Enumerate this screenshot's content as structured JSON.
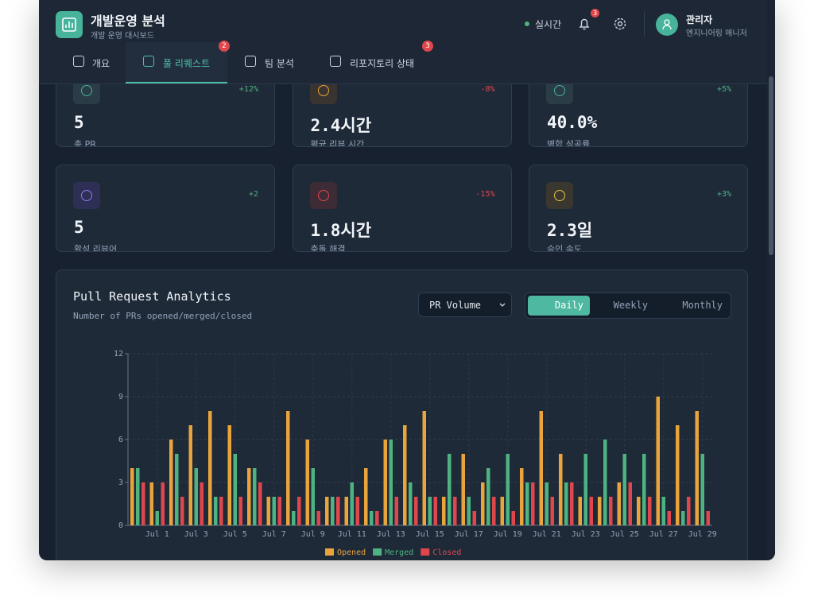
{
  "header": {
    "title": "개발운영 분석",
    "subtitle": "개발 운영 대시보드",
    "status": "실시간",
    "notifications": 3,
    "user": {
      "name": "관리자",
      "role": "엔지니어링 매니저"
    }
  },
  "tabs": [
    {
      "label": "개요"
    },
    {
      "label": "풀 리퀘스트",
      "badge": 2
    },
    {
      "label": "팀 분석"
    },
    {
      "label": "리포지토리 상태",
      "badge": 3
    }
  ],
  "stats": [
    {
      "value": "5",
      "label": "총 PR",
      "change": "+12%"
    },
    {
      "value": "2.4시간",
      "label": "평균 리뷰 시간",
      "change": "-8%"
    },
    {
      "value": "40.0%",
      "label": "병합 성공률",
      "change": "+5%"
    },
    {
      "value": "5",
      "label": "활성 리뷰어",
      "change": "+2"
    },
    {
      "value": "1.8시간",
      "label": "충돌 해결",
      "change": "-15%"
    },
    {
      "value": "2.3일",
      "label": "승인 속도",
      "change": "+3%"
    }
  ],
  "chart_data": {
    "type": "bar",
    "title": "Pull Request Analytics",
    "subtitle": "Number of PRs opened/merged/closed",
    "metric": "PR Volume",
    "periods": [
      "Daily",
      "Weekly",
      "Monthly"
    ],
    "categories": [
      null,
      "Jul 1",
      null,
      "Jul 3",
      null,
      "Jul 5",
      null,
      "Jul 7",
      null,
      "Jul 9",
      null,
      "Jul 11",
      null,
      "Jul 13",
      null,
      "Jul 15",
      null,
      "Jul 17",
      null,
      "Jul 19",
      null,
      "Jul 21",
      null,
      "Jul 23",
      null,
      "Jul 25",
      null,
      "Jul 27",
      null,
      "Jul 29"
    ],
    "series": [
      {
        "name": "Opened",
        "color": "#e9a43c",
        "values": [
          4,
          3,
          6,
          7,
          8,
          7,
          4,
          2,
          8,
          6,
          2,
          2,
          4,
          6,
          7,
          8,
          2,
          5,
          3,
          2,
          4,
          8,
          5,
          2,
          2,
          3,
          2,
          9,
          7,
          8
        ]
      },
      {
        "name": "Merged",
        "color": "#4db380",
        "values": [
          4,
          1,
          5,
          4,
          2,
          5,
          4,
          2,
          1,
          4,
          2,
          3,
          1,
          6,
          3,
          2,
          5,
          2,
          4,
          5,
          3,
          3,
          3,
          5,
          6,
          5,
          5,
          2,
          1,
          5
        ]
      },
      {
        "name": "Closed",
        "color": "#e0474c",
        "values": [
          3,
          3,
          2,
          3,
          2,
          2,
          3,
          2,
          2,
          1,
          2,
          2,
          1,
          2,
          2,
          2,
          2,
          1,
          2,
          1,
          3,
          2,
          3,
          2,
          2,
          3,
          2,
          1,
          2,
          1
        ]
      }
    ],
    "ylim": [
      0,
      12
    ],
    "yticks": [
      0,
      3,
      6,
      9,
      12
    ],
    "grid": true,
    "legend": "bottom"
  }
}
